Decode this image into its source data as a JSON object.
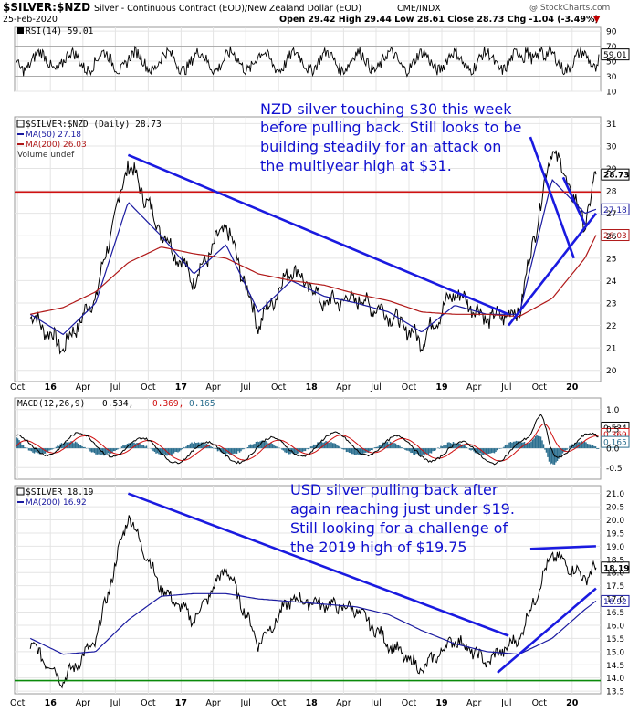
{
  "header": {
    "symbol": "$SILVER:$NZD",
    "description": "Silver - Continuous Contract (EOD)/New Zealand Dollar (EOD)",
    "exchange": "CME/INDX",
    "date": "25-Feb-2020",
    "ohlc": "Open 29.42  High 29.44  Low 28.61  Close 28.73  Chg -1.04 (-3.49%)",
    "ohlc_arrow": "▼",
    "brand": "@ StockCharts.com"
  },
  "colors": {
    "price": "#000000",
    "ma50": "#1a1aa0",
    "ma200": "#b01818",
    "trendline": "#1a1ae0",
    "horizontal_line_nzd": "#d01010",
    "horizontal_line_usd": "#0a8a0a",
    "macd": "#000000",
    "signal": "#d01010",
    "histogram": "#2c6f8f",
    "annotation": "#1010d0",
    "grid": "#e4e4e4"
  },
  "x_axis_labels": [
    "Oct",
    "16",
    "Apr",
    "Jul",
    "Oct",
    "17",
    "Apr",
    "Jul",
    "Oct",
    "18",
    "Apr",
    "Jul",
    "Oct",
    "19",
    "Apr",
    "Jul",
    "Oct",
    "20"
  ],
  "chart_data": [
    {
      "type": "line",
      "panel": "RSI",
      "legend": "RSI(14) 59.01",
      "y_ticks": [
        "90",
        "70",
        "50",
        "30",
        "10"
      ],
      "ylim": [
        10,
        95
      ],
      "reference_lines": [
        30,
        70
      ],
      "last_value_label": "59.01",
      "value_range": [
        30,
        80
      ]
    },
    {
      "type": "line",
      "panel": "NZD price",
      "legend": {
        "series": "$SILVER:$NZD (Daily) 28.73",
        "ma50": "MA(50) 27.18",
        "ma200": "MA(200) 26.03",
        "volume": "Volume undef"
      },
      "y_ticks": [
        "31",
        "30",
        "29",
        "28",
        "27",
        "26",
        "25",
        "24",
        "23",
        "22",
        "21",
        "20"
      ],
      "ylim": [
        19.5,
        31.3
      ],
      "x": [
        "2015-10",
        "2016-01",
        "2016-04",
        "2016-07",
        "2016-10",
        "2017-01",
        "2017-04",
        "2017-07",
        "2017-10",
        "2018-01",
        "2018-04",
        "2018-07",
        "2018-10",
        "2019-01",
        "2019-04",
        "2019-07",
        "2019-10",
        "2020-01",
        "2020-02"
      ],
      "series": [
        {
          "name": "$SILVER:$NZD",
          "values": [
            22.5,
            21.0,
            23.3,
            29.3,
            26.2,
            24.0,
            26.5,
            22.0,
            24.6,
            23.0,
            23.2,
            22.5,
            21.3,
            23.5,
            22.3,
            22.6,
            30.0,
            26.5,
            28.73
          ]
        },
        {
          "name": "MA(50)",
          "values": [
            22.5,
            21.6,
            23.0,
            27.5,
            26.0,
            24.3,
            25.6,
            22.6,
            24.0,
            23.3,
            23.0,
            22.6,
            21.7,
            22.9,
            22.5,
            22.5,
            28.5,
            27.0,
            27.18
          ]
        },
        {
          "name": "MA(200)",
          "values": [
            22.5,
            22.8,
            23.5,
            24.8,
            25.5,
            25.2,
            25.0,
            24.3,
            24.0,
            23.8,
            23.4,
            23.1,
            22.6,
            22.5,
            22.5,
            22.4,
            23.2,
            25.0,
            26.03
          ]
        }
      ],
      "horizontal_line": 27.95,
      "trendlines": [
        [
          [
            "2016-07",
            29.6
          ],
          [
            "2019-06",
            22.5
          ]
        ],
        [
          [
            "2019-06",
            22.0
          ],
          [
            "2020-02",
            27.0
          ]
        ],
        [
          [
            "2019-08",
            30.4
          ],
          [
            "2019-12",
            25.0
          ]
        ],
        [
          [
            "2019-11",
            28.6
          ],
          [
            "2020-01",
            26.5
          ]
        ]
      ],
      "value_labels": [
        "28.73",
        "27.18",
        "26.03"
      ],
      "annotation": [
        "NZD silver touching $30 this week",
        "before pulling back. Still looks to be",
        "building steadily for an attack on",
        "the multiyear high at $31."
      ]
    },
    {
      "type": "line",
      "panel": "MACD",
      "legend": {
        "label": "MACD(12,26,9)",
        "macd": "0.534,",
        "signal": "0.369,",
        "hist": "0.165"
      },
      "y_ticks": [
        "1.0",
        "0.5",
        "0.0",
        "-0.5"
      ],
      "ylim": [
        -0.8,
        1.3
      ],
      "value_labels": [
        "0.534",
        "0.369",
        "0.165"
      ],
      "peak": {
        "x": "2019-09",
        "value": 1.1
      }
    },
    {
      "type": "line",
      "panel": "USD price",
      "legend": {
        "series": "$SILVER 18.19",
        "ma200": "MA(200) 16.92"
      },
      "y_ticks": [
        "21.0",
        "20.5",
        "20.0",
        "19.5",
        "19.0",
        "18.5",
        "18.0",
        "17.5",
        "17.0",
        "16.5",
        "16.0",
        "15.5",
        "15.0",
        "14.5",
        "14.0",
        "13.5"
      ],
      "ylim": [
        13.4,
        21.3
      ],
      "x": [
        "2015-10",
        "2016-01",
        "2016-04",
        "2016-07",
        "2016-10",
        "2017-01",
        "2017-04",
        "2017-07",
        "2017-10",
        "2018-01",
        "2018-04",
        "2018-07",
        "2018-10",
        "2019-01",
        "2019-04",
        "2019-07",
        "2019-10",
        "2020-01",
        "2020-02"
      ],
      "series": [
        {
          "name": "$SILVER",
          "values": [
            15.3,
            13.9,
            15.4,
            20.2,
            17.4,
            16.2,
            18.2,
            15.3,
            17.0,
            16.8,
            16.6,
            15.3,
            14.3,
            15.5,
            14.6,
            15.5,
            18.7,
            17.8,
            18.19
          ]
        },
        {
          "name": "MA(200)",
          "values": [
            15.5,
            14.9,
            15.0,
            16.2,
            17.1,
            17.2,
            17.2,
            17.0,
            16.9,
            16.8,
            16.7,
            16.4,
            15.8,
            15.3,
            15.0,
            14.9,
            15.5,
            16.6,
            16.92
          ]
        }
      ],
      "horizontal_line": 13.9,
      "trendlines": [
        [
          [
            "2016-07",
            21.0
          ],
          [
            "2019-06",
            15.6
          ]
        ],
        [
          [
            "2019-05",
            14.2
          ],
          [
            "2020-02",
            17.4
          ]
        ],
        [
          [
            "2019-08",
            18.9
          ],
          [
            "2020-02",
            19.0
          ]
        ]
      ],
      "value_labels": [
        "18.19",
        "16.92"
      ],
      "annotation": [
        "USD silver pulling back after",
        "again reaching just under $19.",
        "Still looking for a challenge of",
        "the 2019 high of $19.75"
      ]
    }
  ]
}
